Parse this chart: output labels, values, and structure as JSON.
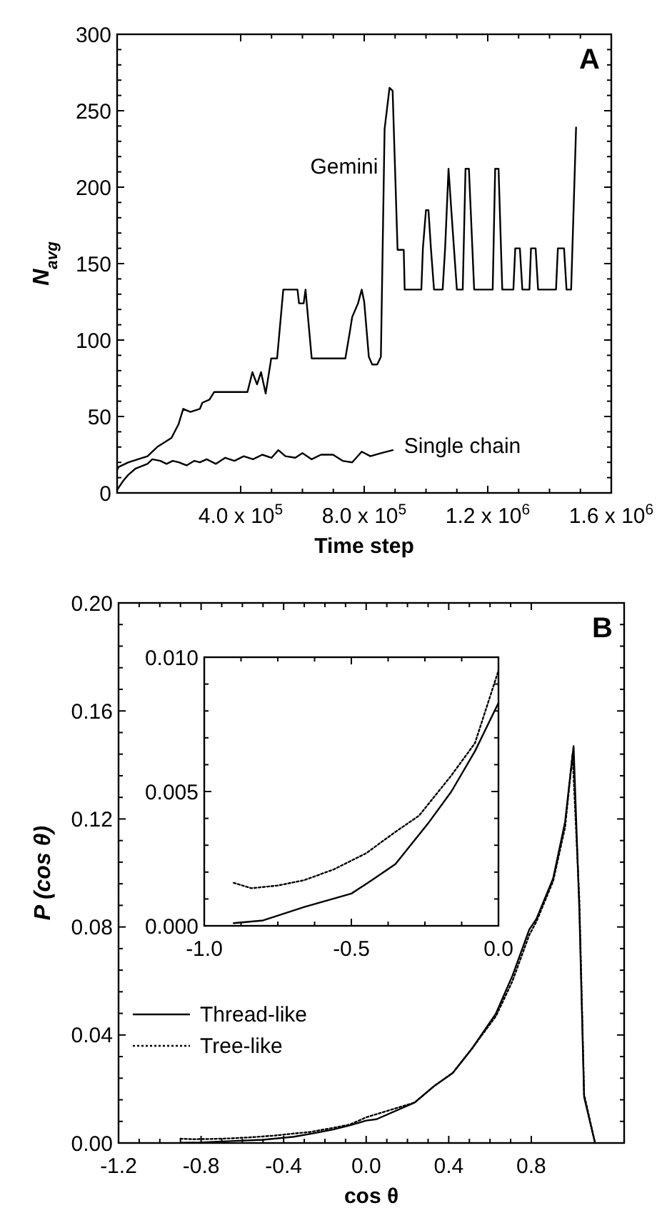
{
  "chart_data": [
    {
      "type": "line",
      "xlabel": "Time step",
      "ylabel": "N$_{avg}$",
      "annotations": [
        "A"
      ],
      "xlim": [
        0,
        1600000
      ],
      "ylim": [
        0,
        300
      ],
      "xticks": [
        {
          "value": 400000,
          "label": "4.0 x 10$^{5}$"
        },
        {
          "value": 800000,
          "label": "8.0 x 10$^{5}$"
        },
        {
          "value": 1200000,
          "label": "1.2 x 10$^{6}$"
        },
        {
          "value": 1600000,
          "label": "1.6 x 10$^{6}$"
        }
      ],
      "yticks": [
        0,
        50,
        100,
        150,
        200,
        250,
        300
      ],
      "grid": false,
      "legend": false,
      "marker": "none",
      "line_style": "solid",
      "series": [
        {
          "name": "Gemini",
          "color": "#000000",
          "x": [
            0,
            5000,
            37000,
            98500,
            129500,
            176000,
            199000,
            214000,
            237000,
            268000,
            276000,
            299000,
            314000,
            422000,
            438000,
            453000,
            466000,
            481000,
            499000,
            518000,
            538000,
            584000,
            589000,
            604000,
            610000,
            630000,
            739000,
            754000,
            761000,
            780000,
            792000,
            800000,
            815000,
            826000,
            842000,
            854000,
            866000,
            882000,
            892000,
            908000,
            928000,
            931000,
            985000,
            990000,
            1000000,
            1008000,
            1016000,
            1026000,
            1054000,
            1062000,
            1073000,
            1082000,
            1100000,
            1119000,
            1128000,
            1139000,
            1156000,
            1216000,
            1224000,
            1235000,
            1247000,
            1283000,
            1289000,
            1304000,
            1312000,
            1335000,
            1340000,
            1355000,
            1363000,
            1421000,
            1427000,
            1447000,
            1455000,
            1470000,
            1486000
          ],
          "values": [
            15,
            17,
            20,
            24,
            30,
            36,
            45,
            55,
            53,
            55,
            59,
            61,
            66,
            66,
            79,
            71,
            79,
            65,
            88,
            88,
            133,
            133,
            124,
            124,
            133,
            88,
            88,
            106,
            115,
            124,
            133,
            125,
            89,
            84,
            84,
            89,
            238,
            265,
            263,
            159,
            159,
            133,
            133,
            160,
            185,
            185,
            160,
            133,
            133,
            160,
            212,
            185,
            133,
            133,
            212,
            212,
            133,
            133,
            212,
            212,
            133,
            133,
            160,
            160,
            133,
            133,
            160,
            160,
            133,
            133,
            160,
            160,
            133,
            133,
            239
          ]
        },
        {
          "name": "Single chain",
          "color": "#000000",
          "x": [
            0,
            20000,
            37000,
            60000,
            98000,
            114000,
            140000,
            160000,
            180000,
            200000,
            225000,
            250000,
            268000,
            290000,
            320000,
            350000,
            380000,
            410000,
            440000,
            470000,
            500000,
            522000,
            545000,
            577000,
            600000,
            630000,
            660000,
            699000,
            730000,
            761000,
            792000,
            820000,
            854000,
            892000
          ],
          "values": [
            2,
            8,
            12,
            16,
            19,
            22,
            21,
            19,
            21,
            20,
            18,
            21,
            20,
            22,
            19,
            23,
            21,
            24,
            22,
            25,
            23,
            28,
            24,
            23,
            26,
            22,
            25,
            25,
            21,
            20,
            27,
            24,
            26,
            28
          ]
        }
      ]
    },
    {
      "type": "line",
      "xlabel": "cos θ",
      "ylabel": "P (cos θ)",
      "annotations": [
        "B"
      ],
      "xlim": [
        -1.2,
        1.25
      ],
      "ylim": [
        0,
        0.2
      ],
      "xticks": [
        -1.2,
        -0.8,
        -0.4,
        {
          "value": 0,
          "label": "0.0"
        },
        0.4,
        0.8
      ],
      "yticks": [
        {
          "value": 0,
          "label": "0.00"
        },
        0.04,
        0.08,
        0.12,
        0.16,
        {
          "value": 0.2,
          "label": "0.20"
        }
      ],
      "grid": false,
      "legend": "bottom left",
      "marker": "none",
      "series": [
        {
          "name": "Thread-like",
          "color": "#000000",
          "line_style": "solid",
          "x": [
            -0.9,
            -0.8,
            -0.66,
            -0.5,
            -0.35,
            -0.24,
            -0.16,
            -0.08,
            0,
            0.05,
            0.235,
            0.328,
            0.42,
            0.513,
            0.629,
            0.709,
            0.79,
            0.825,
            0.906,
            0.964,
            1.005,
            1.033,
            1.056,
            1.109
          ],
          "values": [
            0.0001,
            0.0002,
            0.0007,
            0.0012,
            0.0023,
            0.0038,
            0.005,
            0.0065,
            0.0083,
            0.0088,
            0.015,
            0.021,
            0.026,
            0.035,
            0.048,
            0.062,
            0.079,
            0.083,
            0.098,
            0.119,
            0.147,
            0.086,
            0.017,
            0
          ]
        },
        {
          "name": "Tree-like",
          "color": "#000000",
          "line_style": "dotted",
          "x": [
            -0.9,
            -0.84,
            -0.75,
            -0.66,
            -0.56,
            -0.45,
            -0.35,
            -0.27,
            -0.16,
            -0.08,
            0,
            0.235,
            0.328,
            0.42,
            0.513,
            0.629,
            0.709,
            0.79,
            0.825,
            0.906,
            0.964,
            1.0,
            1.033,
            1.056,
            1.109
          ],
          "values": [
            0.0016,
            0.0014,
            0.0015,
            0.0017,
            0.0021,
            0.0027,
            0.0035,
            0.0041,
            0.0056,
            0.0068,
            0.0095,
            0.015,
            0.021,
            0.026,
            0.035,
            0.047,
            0.06,
            0.077,
            0.082,
            0.097,
            0.117,
            0.144,
            0.09,
            0.018,
            0
          ]
        }
      ]
    },
    {
      "type": "line",
      "xlim": [
        -1,
        0
      ],
      "ylim": [
        0,
        0.01
      ],
      "xticks": [
        {
          "value": -1,
          "label": "-1.0"
        },
        -0.5,
        {
          "value": 0,
          "label": "0.0"
        }
      ],
      "yticks": [
        {
          "value": 0,
          "label": "0.000"
        },
        0.005,
        {
          "value": 0.01,
          "label": "0.010"
        }
      ],
      "grid": false,
      "legend": false,
      "marker": "none",
      "series": [
        {
          "color": "#000000",
          "line_style": "solid",
          "x": [
            -0.9,
            -0.8,
            -0.66,
            -0.5,
            -0.43,
            -0.35,
            -0.24,
            -0.16,
            -0.08,
            0
          ],
          "values": [
            0.0001,
            0.0002,
            0.0007,
            0.0012,
            0.0017,
            0.0023,
            0.0038,
            0.005,
            0.0065,
            0.0083
          ]
        },
        {
          "color": "#000000",
          "line_style": "dotted",
          "x": [
            -0.9,
            -0.84,
            -0.75,
            -0.66,
            -0.56,
            -0.45,
            -0.35,
            -0.27,
            -0.16,
            -0.08,
            0
          ],
          "values": [
            0.0016,
            0.0014,
            0.0015,
            0.0017,
            0.0021,
            0.0027,
            0.0035,
            0.0041,
            0.0056,
            0.0068,
            0.0095
          ]
        }
      ]
    }
  ]
}
